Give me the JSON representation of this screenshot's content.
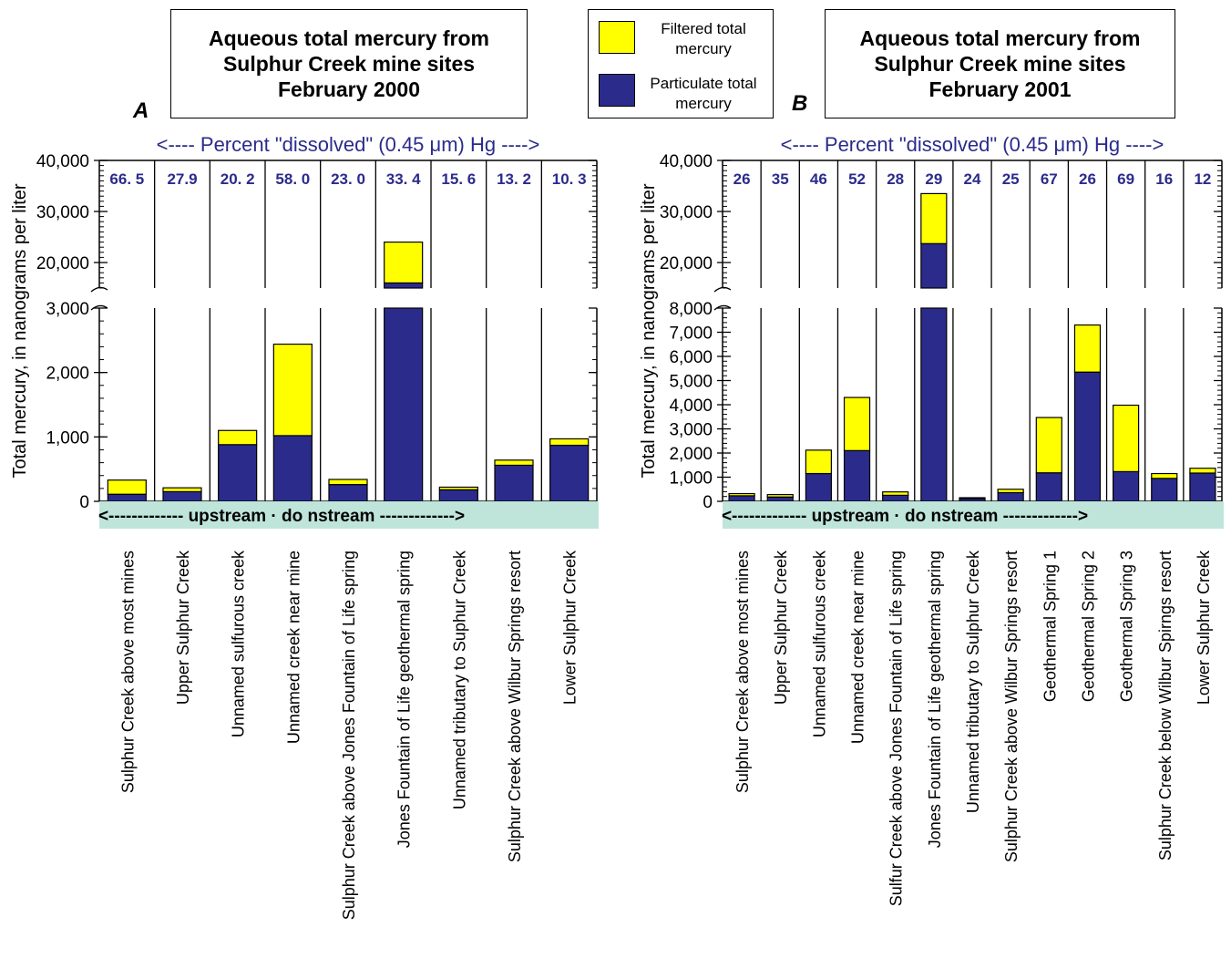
{
  "legend": {
    "filtered_label": "Filtered total mercury",
    "particulate_label": "Particulate total mercury"
  },
  "colors": {
    "filtered": "#FFFF00",
    "particulate": "#2B2B8C",
    "axis_text": "#2B2B8C",
    "band": "#BFE5DA"
  },
  "chart_data": [
    {
      "type": "bar",
      "panel": "A",
      "title": [
        "Aqueous total mercury from",
        "Sulphur Creek mine sites",
        "February 2000"
      ],
      "top_label": "<---- Percent \"dissolved\" (0.45 μm) Hg  ---->",
      "ylabel": "Total mercury, in nanograms per liter",
      "band_text": "<------------- upstream  ·  do   nstream ------------->",
      "axis_break": true,
      "ylim_lower": [
        0,
        3000
      ],
      "yticks_lower": [
        0,
        1000,
        2000,
        3000
      ],
      "ylim_upper": [
        15000,
        40000
      ],
      "yticks_upper": [
        20000,
        30000,
        40000
      ],
      "categories": [
        "Sulphur Creek above most mines",
        "Upper Sulphur Creek",
        "Unnamed sulfurous creek",
        "Unnamed creek near mine",
        "Sulphur Creek above Jones Fountain of Life spring",
        "Jones Fountain of Life geothermal spring",
        "Unnamed tributary to Suphur Creek",
        "Sulphur  Creek above Wilbur Springs resort",
        "Lower Sulphur Creek"
      ],
      "percent_dissolved": [
        "66. 5",
        "27.9",
        "20. 2",
        "58. 0",
        "23. 0",
        "33. 4",
        "15. 6",
        "13. 2",
        "10. 3"
      ],
      "series": [
        {
          "name": "Particulate total mercury",
          "values": [
            110,
            150,
            880,
            1020,
            260,
            16000,
            180,
            560,
            870
          ]
        },
        {
          "name": "Filtered total mercury",
          "values": [
            220,
            60,
            220,
            1420,
            80,
            8000,
            40,
            80,
            100
          ]
        }
      ]
    },
    {
      "type": "bar",
      "panel": "B",
      "title": [
        "Aqueous total mercury from",
        "Sulphur Creek mine sites",
        "February 2001"
      ],
      "top_label": "<---- Percent \"dissolved\" (0.45 μm) Hg  ---->",
      "ylabel": "Total mercury, in nanograms per liter",
      "band_text": "<------------- upstream  ·  do   nstream ------------->",
      "axis_break": true,
      "ylim_lower": [
        0,
        8000
      ],
      "yticks_lower": [
        0,
        1000,
        2000,
        3000,
        4000,
        5000,
        6000,
        7000,
        8000
      ],
      "ylim_upper": [
        15000,
        40000
      ],
      "yticks_upper": [
        20000,
        30000,
        40000
      ],
      "categories": [
        "Sulphur Creek above most mines",
        "Upper Sulphur Creek",
        "Unnamed sulfurous creek",
        "Unnamed creek near mine",
        "Sulfur Creek above Jones Fountain of Life spring",
        "Jones Fountain of Life geothermal spring",
        "Unnamed tributary to Sulphur Creek",
        "Sulphur Creek above Wilbur Springs resort",
        "Geothermal Spring 1",
        "Geothermal Spring 2",
        "Geothermal Spring 3",
        "Sulphur Creek below Wilbur Spirngs resort",
        "Lower Sulphur Creek"
      ],
      "percent_dissolved": [
        "26",
        "35",
        "46",
        "52",
        "28",
        "29",
        "24",
        "25",
        "67",
        "26",
        "69",
        "16",
        "12"
      ],
      "series": [
        {
          "name": "Particulate total mercury",
          "values": [
            230,
            180,
            1150,
            2100,
            250,
            23700,
            110,
            360,
            1180,
            5350,
            1230,
            950,
            1170
          ]
        },
        {
          "name": "Filtered total mercury",
          "values": [
            90,
            100,
            970,
            2200,
            140,
            9800,
            40,
            140,
            2290,
            1950,
            2750,
            200,
            200
          ]
        }
      ]
    }
  ]
}
